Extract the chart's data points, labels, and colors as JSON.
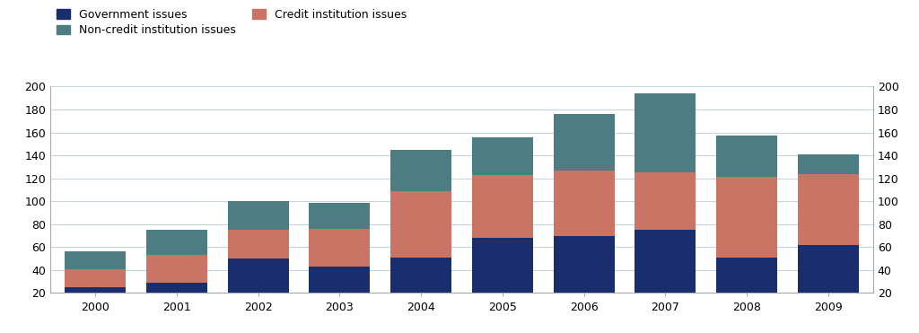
{
  "years": [
    "2000",
    "2001",
    "2002",
    "2003",
    "2004",
    "2005",
    "2006",
    "2007",
    "2008",
    "2009"
  ],
  "government": [
    25,
    29,
    50,
    43,
    51,
    68,
    70,
    75,
    51,
    62
  ],
  "credit": [
    16,
    24,
    25,
    33,
    58,
    55,
    57,
    50,
    70,
    62
  ],
  "non_credit": [
    15,
    22,
    25,
    23,
    36,
    33,
    49,
    69,
    36,
    17
  ],
  "gov_color": "#1a2e6e",
  "credit_color": "#c97464",
  "non_credit_color": "#4d7d82",
  "ylim_min": 20,
  "ylim_max": 200,
  "yticks": [
    20,
    40,
    60,
    80,
    100,
    120,
    140,
    160,
    180,
    200
  ],
  "legend_labels": [
    "Government issues",
    "Credit institution issues",
    "Non-credit institution issues"
  ],
  "background_color": "#ffffff",
  "grid_color": "#c8d4dc"
}
